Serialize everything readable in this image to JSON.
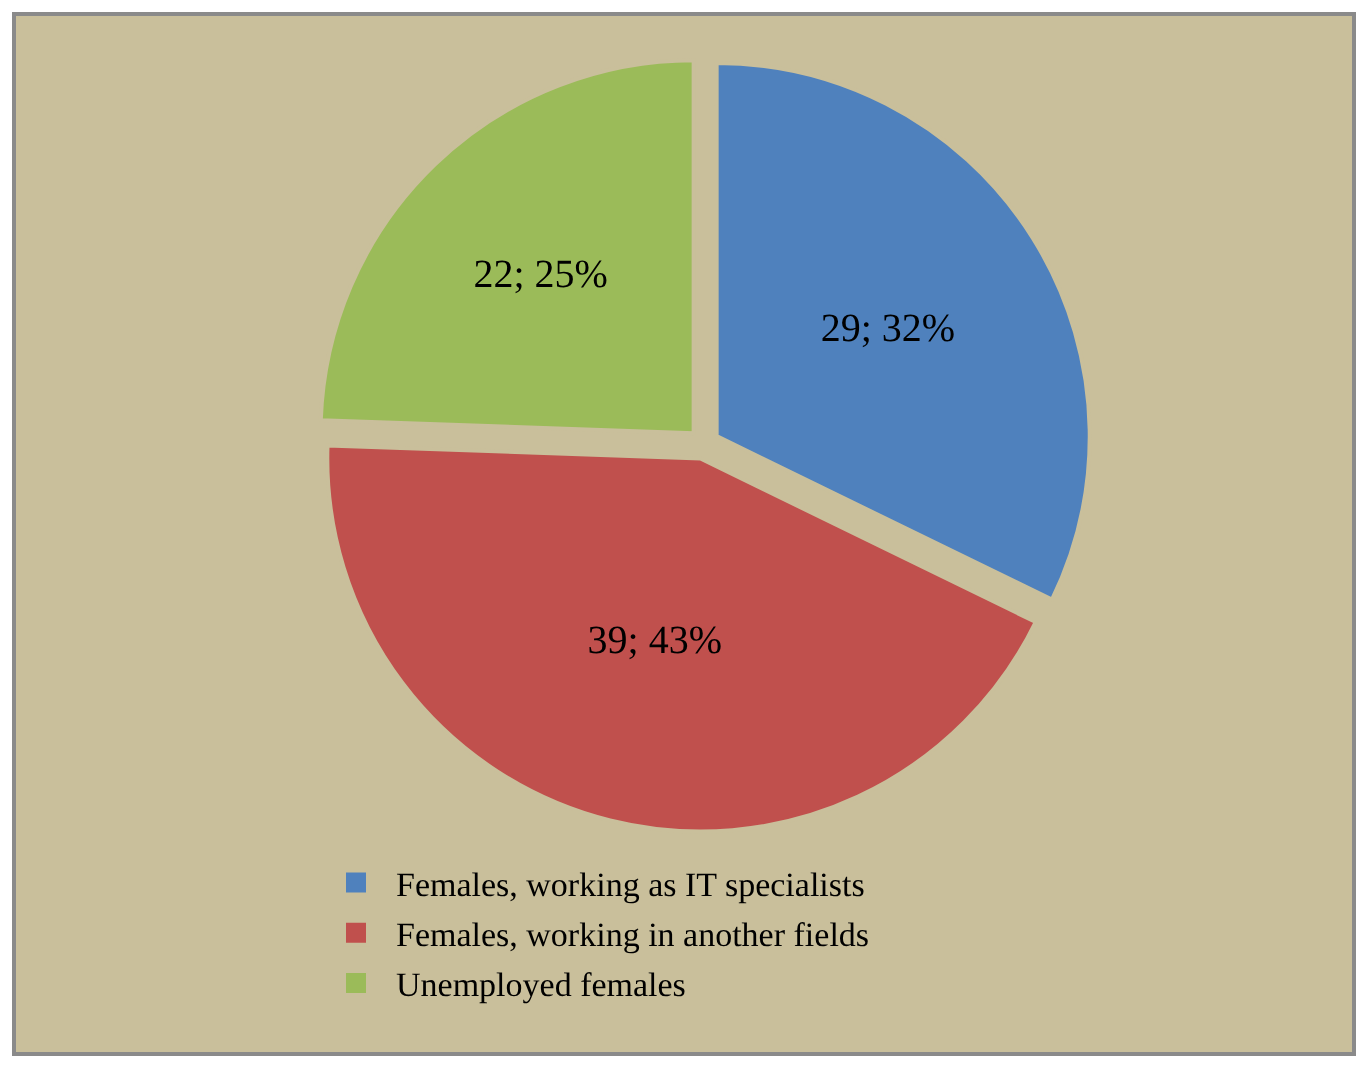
{
  "chart_data": {
    "type": "pie",
    "categories": [
      "Females, working as IT specialists",
      "Females, working in another fields",
      "Unemployed females"
    ],
    "values": [
      29,
      39,
      22
    ],
    "colors": [
      "#4f81bd",
      "#c0504d",
      "#9bbb59"
    ],
    "value_labels": [
      "29; 32%",
      "39; 43%",
      "22; 25%"
    ],
    "legend": "bottom"
  }
}
